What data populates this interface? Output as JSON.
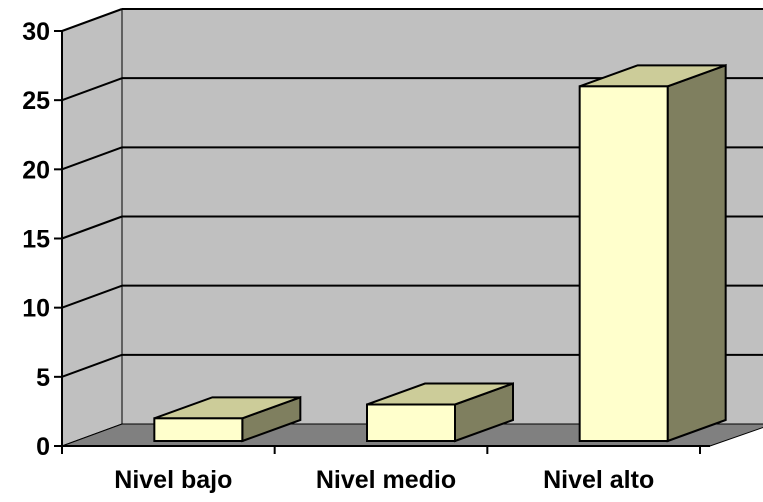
{
  "chart_data": {
    "type": "bar",
    "title": "",
    "xlabel": "",
    "ylabel": "",
    "categories": [
      "Nivel bajo",
      "Nivel medio",
      "Nivel alto"
    ],
    "values": [
      2,
      3,
      26
    ],
    "ylim": [
      0,
      30
    ],
    "yticks": [
      0,
      5,
      10,
      15,
      20,
      25,
      30
    ],
    "grid": true,
    "style": "3d",
    "colors": {
      "wall": "#c0c0c0",
      "floor": "#808080",
      "bar_front": "#ffffcc",
      "bar_top": "#cccc99",
      "bar_side": "#7f7f5f",
      "gridline": "#000000"
    }
  }
}
